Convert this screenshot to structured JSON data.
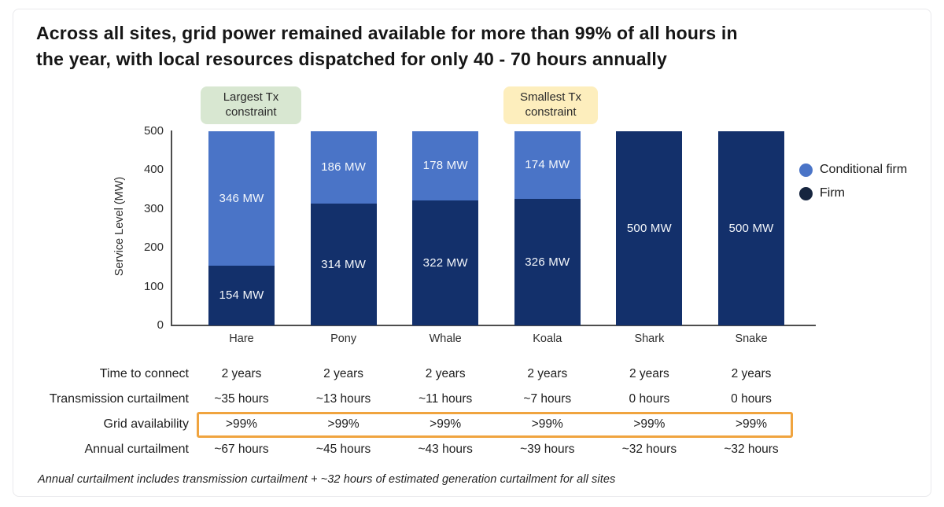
{
  "page": {
    "title_lines": [
      "Across all sites, grid power remained available for more than 99% of all hours in",
      "the year, with local resources dispatched for only 40 - 70 hours annually"
    ],
    "footnote": "Annual curtailment includes transmission curtailment + ~32 hours of estimated generation curtailment for all sites"
  },
  "annotations": {
    "largest": {
      "label": "Largest Tx constraint",
      "bg_color": "#d8e7d1"
    },
    "smallest": {
      "label": "Smallest Tx constraint",
      "bg_color": "#fdeebd"
    }
  },
  "legend": [
    {
      "label": "Conditional firm",
      "color": "#4a74c7"
    },
    {
      "label": "Firm",
      "color": "#16253f"
    }
  ],
  "chart_data": {
    "type": "bar",
    "stacked": true,
    "categories": [
      "Hare",
      "Pony",
      "Whale",
      "Koala",
      "Shark",
      "Snake"
    ],
    "series": [
      {
        "name": "Firm",
        "color": "#13306b",
        "values": [
          154,
          314,
          322,
          326,
          500,
          500
        ]
      },
      {
        "name": "Conditional firm",
        "color": "#4a74c7",
        "values": [
          346,
          186,
          178,
          174,
          0,
          0
        ]
      }
    ],
    "bar_label_suffix": " MW",
    "ylabel": "Service Level (MW)",
    "ylim": [
      0,
      500
    ],
    "yticks": [
      0,
      100,
      200,
      300,
      400,
      500
    ],
    "grid": false,
    "legend_position": "right"
  },
  "table": {
    "rows": [
      {
        "label": "Time to connect",
        "highlight": false,
        "values": [
          "2 years",
          "2 years",
          "2 years",
          "2 years",
          "2 years",
          "2 years"
        ]
      },
      {
        "label": "Transmission curtailment",
        "highlight": false,
        "values": [
          "~35 hours",
          "~13 hours",
          "~11 hours",
          "~7 hours",
          "0 hours",
          "0 hours"
        ]
      },
      {
        "label": "Grid availability",
        "highlight": true,
        "values": [
          ">99%",
          ">99%",
          ">99%",
          ">99%",
          ">99%",
          ">99%"
        ]
      },
      {
        "label": "Annual curtailment",
        "highlight": false,
        "values": [
          "~67 hours",
          "~45 hours",
          "~43 hours",
          "~39 hours",
          "~32 hours",
          "~32 hours"
        ]
      }
    ],
    "highlight_color": "#f0a43f"
  }
}
